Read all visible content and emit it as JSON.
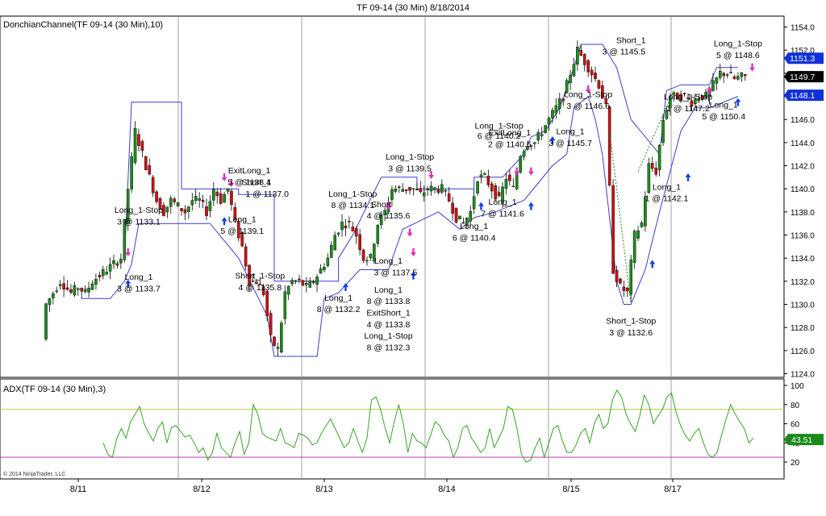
{
  "header": {
    "title": "TF 09-14 (30 Min)  8/18/2014"
  },
  "copyright": "© 2014 NinjaTrader, LLC",
  "colors": {
    "background": "#ffffff",
    "channel": "#3c3cd0",
    "up_candle": "#1e8c1e",
    "down_candle": "#c81414",
    "adx_line": "#3aa02a",
    "adx_upper": "#b8c83c",
    "adx_lower": "#b43cb4",
    "grid": "#a0a0a0",
    "long_arrow": "#1040e8",
    "short_arrow": "#e030c0",
    "badge_blue": "#1030d8",
    "badge_black": "#000000",
    "badge_green": "#1a8a1a"
  },
  "chart_data": [
    {
      "type": "candlestick",
      "title": "DonchianChannel(TF 09-14 (30 Min),10)",
      "categories": [
        "8/11",
        "8/12",
        "8/13",
        "8/14",
        "8/15",
        "8/17"
      ],
      "ylim": [
        1123.5,
        1155
      ],
      "y_ticks": [
        "1154.0",
        "1152.0",
        "1150.0",
        "1148.0",
        "1146.0",
        "1144.0",
        "1142.0",
        "1140.0",
        "1138.0",
        "1136.0",
        "1134.0",
        "1132.0",
        "1130.0",
        "1128.0",
        "1126.0",
        "1124.0"
      ],
      "price_badges": [
        {
          "label": "1151.3",
          "value": 1151.3,
          "color": "blue"
        },
        {
          "label": "1149.7",
          "value": 1149.7,
          "color": "black"
        },
        {
          "label": "1148.1",
          "value": 1148.1,
          "color": "blue"
        }
      ],
      "path": [
        [
          0,
          1127
        ],
        [
          1,
          1130
        ],
        [
          3,
          1131
        ],
        [
          5,
          1132
        ],
        [
          8,
          1131
        ],
        [
          10,
          1131.5
        ],
        [
          12,
          1131
        ],
        [
          14,
          1132
        ],
        [
          16,
          1132.5
        ],
        [
          18,
          1133
        ],
        [
          20,
          1133.5
        ],
        [
          22,
          1134
        ],
        [
          24,
          1140
        ],
        [
          26,
          1145
        ],
        [
          28,
          1143
        ],
        [
          30,
          1141
        ],
        [
          32,
          1139
        ],
        [
          34,
          1138
        ],
        [
          36,
          1139
        ],
        [
          38,
          1138.5
        ],
        [
          40,
          1138
        ],
        [
          42,
          1139
        ],
        [
          44,
          1139
        ],
        [
          46,
          1138
        ],
        [
          48,
          1140
        ],
        [
          50,
          1139
        ],
        [
          52,
          1140
        ],
        [
          54,
          1137
        ],
        [
          56,
          1135
        ],
        [
          58,
          1132
        ],
        [
          60,
          1132
        ],
        [
          62,
          1131
        ],
        [
          64,
          1127
        ],
        [
          66,
          1126
        ],
        [
          68,
          1131
        ],
        [
          70,
          1132
        ],
        [
          72,
          1132
        ],
        [
          74,
          1131.5
        ],
        [
          76,
          1132
        ],
        [
          78,
          1133
        ],
        [
          80,
          1134
        ],
        [
          82,
          1136
        ],
        [
          84,
          1137
        ],
        [
          86,
          1137
        ],
        [
          88,
          1136
        ],
        [
          90,
          1134
        ],
        [
          92,
          1134
        ],
        [
          94,
          1137
        ],
        [
          96,
          1138
        ],
        [
          98,
          1140
        ],
        [
          100,
          1140
        ],
        [
          102,
          1140
        ],
        [
          104,
          1140
        ],
        [
          106,
          1139.5
        ],
        [
          108,
          1140
        ],
        [
          110,
          1140
        ],
        [
          112,
          1140
        ],
        [
          114,
          1139
        ],
        [
          116,
          1137.5
        ],
        [
          118,
          1137
        ],
        [
          120,
          1138
        ],
        [
          122,
          1141
        ],
        [
          124,
          1141
        ],
        [
          126,
          1140
        ],
        [
          128,
          1139
        ],
        [
          130,
          1141
        ],
        [
          132,
          1140
        ],
        [
          134,
          1143
        ],
        [
          136,
          1144
        ],
        [
          138,
          1144
        ],
        [
          140,
          1145
        ],
        [
          142,
          1146
        ],
        [
          144,
          1147
        ],
        [
          146,
          1148
        ],
        [
          148,
          1150
        ],
        [
          150,
          1152
        ],
        [
          152,
          1151
        ],
        [
          154,
          1150
        ],
        [
          156,
          1149
        ],
        [
          158,
          1147
        ],
        [
          160,
          1133
        ],
        [
          162,
          1131.5
        ],
        [
          164,
          1131
        ],
        [
          166,
          1136
        ],
        [
          168,
          1137
        ],
        [
          170,
          1142
        ],
        [
          172,
          1141.5
        ],
        [
          174,
          1146
        ],
        [
          176,
          1148
        ],
        [
          178,
          1148
        ],
        [
          180,
          1148
        ],
        [
          182,
          1147.5
        ],
        [
          184,
          1148
        ],
        [
          186,
          1148
        ],
        [
          188,
          1149
        ],
        [
          190,
          1150
        ],
        [
          192,
          1150
        ],
        [
          194,
          1149.5
        ],
        [
          196,
          1149.7
        ]
      ],
      "channel_upper": [
        [
          22,
          1134
        ],
        [
          24,
          1147.5
        ],
        [
          38,
          1147.5
        ],
        [
          38,
          1140
        ],
        [
          54,
          1140
        ],
        [
          54,
          1139.5
        ],
        [
          64,
          1139.5
        ],
        [
          64,
          1132
        ],
        [
          82,
          1132
        ],
        [
          82,
          1134
        ],
        [
          86,
          1136
        ],
        [
          94,
          1141
        ],
        [
          104,
          1141
        ],
        [
          104,
          1140
        ],
        [
          120,
          1140
        ],
        [
          120,
          1141
        ],
        [
          128,
          1141
        ],
        [
          128,
          1141
        ],
        [
          134,
          1143
        ],
        [
          136,
          1144.5
        ],
        [
          140,
          1145
        ],
        [
          144,
          1147
        ],
        [
          148,
          1150.5
        ],
        [
          150,
          1152.5
        ],
        [
          156,
          1152.5
        ],
        [
          160,
          1150.5
        ],
        [
          164,
          1146
        ],
        [
          172,
          1143
        ],
        [
          174,
          1148.5
        ],
        [
          178,
          1149
        ],
        [
          186,
          1149
        ],
        [
          188,
          1150.5
        ],
        [
          194,
          1150.5
        ]
      ],
      "channel_lower": [
        [
          10,
          1130.5
        ],
        [
          18,
          1130.5
        ],
        [
          22,
          1132
        ],
        [
          24,
          1133.5
        ],
        [
          26,
          1137
        ],
        [
          40,
          1137
        ],
        [
          46,
          1137
        ],
        [
          54,
          1134
        ],
        [
          62,
          1129
        ],
        [
          64,
          1125.5
        ],
        [
          76,
          1125.5
        ],
        [
          78,
          1130.5
        ],
        [
          82,
          1131
        ],
        [
          88,
          1133
        ],
        [
          92,
          1133
        ],
        [
          96,
          1133
        ],
        [
          100,
          1136.5
        ],
        [
          110,
          1138
        ],
        [
          116,
          1136.5
        ],
        [
          120,
          1137.5
        ],
        [
          126,
          1138
        ],
        [
          134,
          1139
        ],
        [
          138,
          1140.5
        ],
        [
          142,
          1142
        ],
        [
          146,
          1143
        ],
        [
          148,
          1147
        ],
        [
          152,
          1148
        ],
        [
          154,
          1146
        ],
        [
          156,
          1143
        ],
        [
          160,
          1132
        ],
        [
          162,
          1130
        ],
        [
          164,
          1130
        ],
        [
          168,
          1133
        ],
        [
          172,
          1138
        ],
        [
          178,
          1145
        ],
        [
          182,
          1147
        ],
        [
          186,
          1147
        ],
        [
          194,
          1148
        ]
      ],
      "dotted_lines": [
        [
          [
            158,
            1145
          ],
          [
            164,
            1130
          ]
        ],
        [
          [
            166,
            1141.5
          ],
          [
            176,
            1148.5
          ]
        ]
      ],
      "markers": [
        {
          "i": 23,
          "price": 1134.5,
          "dir": "short"
        },
        {
          "i": 23,
          "price": 1131.8,
          "dir": "long"
        },
        {
          "i": 50,
          "price": 1141,
          "dir": "short"
        },
        {
          "i": 52,
          "price": 1140.5,
          "dir": "short"
        },
        {
          "i": 50,
          "price": 1137.2,
          "dir": "long"
        },
        {
          "i": 84,
          "price": 1131.5,
          "dir": "long"
        },
        {
          "i": 96,
          "price": 1138.5,
          "dir": "short"
        },
        {
          "i": 102,
          "price": 1136.2,
          "dir": "short"
        },
        {
          "i": 103,
          "price": 1134.5,
          "dir": "short"
        },
        {
          "i": 103,
          "price": 1132.5,
          "dir": "long"
        },
        {
          "i": 108,
          "price": 1141.2,
          "dir": "short"
        },
        {
          "i": 122,
          "price": 1138.5,
          "dir": "long"
        },
        {
          "i": 132,
          "price": 1141.5,
          "dir": "short"
        },
        {
          "i": 136,
          "price": 1141.5,
          "dir": "short"
        },
        {
          "i": 136,
          "price": 1138.5,
          "dir": "long"
        },
        {
          "i": 142,
          "price": 1144.2,
          "dir": "long"
        },
        {
          "i": 152,
          "price": 1148.6,
          "dir": "short"
        },
        {
          "i": 170,
          "price": 1133.5,
          "dir": "long"
        },
        {
          "i": 180,
          "price": 1141,
          "dir": "long"
        },
        {
          "i": 186,
          "price": 1148.5,
          "dir": "short"
        },
        {
          "i": 194,
          "price": 1147.5,
          "dir": "long"
        },
        {
          "i": 198,
          "price": 1150.5,
          "dir": "short"
        }
      ],
      "annotations": [
        {
          "text": "Long_1-Stop",
          "i": 26,
          "price": 1138.2
        },
        {
          "text": "3 @ 1133.1",
          "i": 26,
          "price": 1137.2
        },
        {
          "text": "Long_1",
          "i": 26,
          "price": 1132.4
        },
        {
          "text": "3 @ 1133.7",
          "i": 26,
          "price": 1131.4
        },
        {
          "text": "ExitLong_1",
          "i": 57,
          "price": 1141.6
        },
        {
          "text": "5 @ 1138.4",
          "i": 57,
          "price": 1140.6
        },
        {
          "text": "Short_1",
          "i": 59,
          "price": 1140.6
        },
        {
          "text": "1 @ 1137.0",
          "i": 62,
          "price": 1139.6
        },
        {
          "text": "Long_1",
          "i": 55,
          "price": 1137.4
        },
        {
          "text": "5 @ 1139.1",
          "i": 55,
          "price": 1136.4
        },
        {
          "text": "Short_1-Stop",
          "i": 60,
          "price": 1132.5
        },
        {
          "text": "4 @ 1135.8",
          "i": 60,
          "price": 1131.5
        },
        {
          "text": "Long_1-Stop",
          "i": 86,
          "price": 1139.6
        },
        {
          "text": "8 @ 1134.1",
          "i": 86,
          "price": 1138.6
        },
        {
          "text": "Short",
          "i": 94,
          "price": 1138.7
        },
        {
          "text": "4 @ 1135.6",
          "i": 96,
          "price": 1137.7
        },
        {
          "text": "Long_1",
          "i": 82,
          "price": 1130.6
        },
        {
          "text": "8 @ 1132.2",
          "i": 82,
          "price": 1129.6
        },
        {
          "text": "Long_1",
          "i": 96,
          "price": 1133.8
        },
        {
          "text": "3 @ 1137.5",
          "i": 98,
          "price": 1132.8
        },
        {
          "text": "Long_1",
          "i": 96,
          "price": 1131.3
        },
        {
          "text": "8 @ 1133.8",
          "i": 96,
          "price": 1130.3
        },
        {
          "text": "ExitShort_1",
          "i": 96,
          "price": 1129.3
        },
        {
          "text": "4 @ 1133.8",
          "i": 96,
          "price": 1128.3
        },
        {
          "text": "Long_1-Stop",
          "i": 96,
          "price": 1127.3
        },
        {
          "text": "8 @ 1132.3",
          "i": 96,
          "price": 1126.3
        },
        {
          "text": "Long_1-Stop",
          "i": 102,
          "price": 1142.8
        },
        {
          "text": "3 @ 1139.5",
          "i": 102,
          "price": 1141.8
        },
        {
          "text": "Long_1-Stop",
          "i": 127,
          "price": 1145.5
        },
        {
          "text": "6 @ 1140.2",
          "i": 127,
          "price": 1144.6
        },
        {
          "text": "ExitLong_1",
          "i": 130,
          "price": 1144.9
        },
        {
          "text": "2 @ 1140.6",
          "i": 130,
          "price": 1143.9
        },
        {
          "text": "Long_1",
          "i": 128,
          "price": 1138.9
        },
        {
          "text": "7 @ 1141.6",
          "i": 128,
          "price": 1137.9
        },
        {
          "text": "Long_1",
          "i": 120,
          "price": 1136.8
        },
        {
          "text": "6 @ 1140.4",
          "i": 120,
          "price": 1135.8
        },
        {
          "text": "Long_1",
          "i": 147,
          "price": 1145.0
        },
        {
          "text": "3 @ 1145.7",
          "i": 147,
          "price": 1144.0
        },
        {
          "text": "Long_1-Stop",
          "i": 152,
          "price": 1148.2
        },
        {
          "text": "3 @ 1146.6",
          "i": 152,
          "price": 1147.2
        },
        {
          "text": "Short_1",
          "i": 164,
          "price": 1152.9
        },
        {
          "text": "3 @ 1145.5",
          "i": 162,
          "price": 1151.9
        },
        {
          "text": "Long_1-Stop",
          "i": 180,
          "price": 1148.0
        },
        {
          "text": "1 @ 1147.2",
          "i": 180,
          "price": 1147.0
        },
        {
          "text": "Long_1",
          "i": 174,
          "price": 1140.2
        },
        {
          "text": "1 @ 1142.1",
          "i": 174,
          "price": 1139.2
        },
        {
          "text": "Short_1-Stop",
          "i": 164,
          "price": 1128.6
        },
        {
          "text": "3 @ 1132.6",
          "i": 164,
          "price": 1127.6
        },
        {
          "text": "Long_1-Stop",
          "i": 194,
          "price": 1152.6
        },
        {
          "text": "5 @ 1148.6",
          "i": 194,
          "price": 1151.6
        },
        {
          "text": "Long_1",
          "i": 190,
          "price": 1147.3
        },
        {
          "text": "5 @ 1150.4",
          "i": 190,
          "price": 1146.3
        }
      ]
    },
    {
      "type": "line",
      "title": "ADX(TF 09-14 (30 Min),3)",
      "ylim": [
        10,
        100
      ],
      "y_ticks": [
        "100",
        "80",
        "60",
        "40",
        "20"
      ],
      "reference_lines": [
        75,
        25
      ],
      "current_value": "43.51",
      "values": [
        40,
        28,
        25,
        45,
        55,
        45,
        62,
        70,
        78,
        60,
        50,
        42,
        55,
        62,
        40,
        56,
        58,
        52,
        46,
        48,
        40,
        30,
        35,
        22,
        30,
        50,
        35,
        30,
        25,
        40,
        52,
        28,
        40,
        80,
        70,
        50,
        46,
        44,
        42,
        55,
        40,
        38,
        35,
        50,
        48,
        45,
        38,
        40,
        50,
        58,
        65,
        55,
        45,
        35,
        40,
        55,
        42,
        30,
        45,
        85,
        88,
        75,
        55,
        40,
        62,
        80,
        60,
        30,
        50,
        42,
        40,
        35,
        48,
        62,
        58,
        48,
        42,
        25,
        35,
        55,
        58,
        45,
        38,
        30,
        35,
        55,
        35,
        45,
        55,
        78,
        75,
        55,
        28,
        20,
        22,
        35,
        45,
        25,
        40,
        55,
        58,
        42,
        30,
        30,
        38,
        50,
        55,
        40,
        60,
        70,
        55,
        60,
        85,
        95,
        88,
        70,
        60,
        52,
        68,
        90,
        80,
        60,
        68,
        75,
        88,
        92,
        72,
        58,
        48,
        42,
        50,
        55,
        40,
        28,
        25,
        30,
        48,
        65,
        80,
        70,
        62,
        55,
        40,
        45
      ]
    }
  ]
}
